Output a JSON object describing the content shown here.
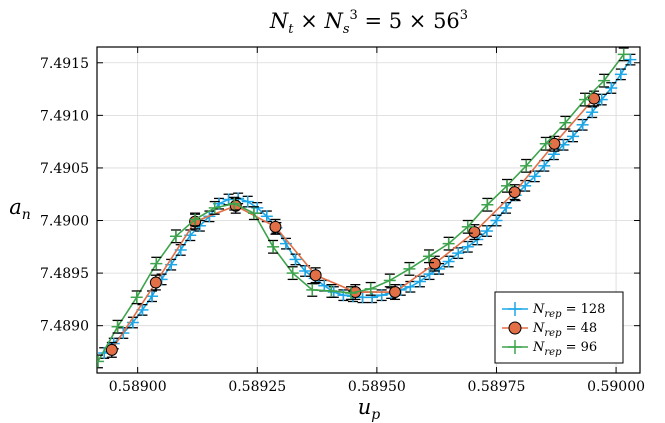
{
  "chart_data": {
    "type": "line",
    "title": "N_t × N_s^3 = 5 × 56^3",
    "xlabel": "u_p",
    "ylabel": "a_n",
    "xlim": [
      0.588915,
      0.59005
    ],
    "ylim": [
      7.48855,
      7.49165
    ],
    "x_ticks": [
      0.589,
      0.58925,
      0.5895,
      0.58975,
      0.59
    ],
    "x_tick_labels": [
      "0.58900",
      "0.58925",
      "0.58950",
      "0.58975",
      "0.59000"
    ],
    "y_ticks": [
      7.489,
      7.4895,
      7.49,
      7.4905,
      7.491,
      7.4915
    ],
    "y_tick_labels": [
      "7.4890",
      "7.4895",
      "7.4900",
      "7.4905",
      "7.4910",
      "7.4915"
    ],
    "grid": true,
    "legend_position": "bottom-right",
    "series": [
      {
        "name": "N_rep = 128",
        "color": "#1ca8e8",
        "marker": "plus",
        "x": [
          0.58893,
          0.58895,
          0.58897,
          0.58899,
          0.58901,
          0.58903,
          0.58905,
          0.58907,
          0.58909,
          0.58911,
          0.58913,
          0.58915,
          0.58917,
          0.58919,
          0.58921,
          0.58923,
          0.58925,
          0.58927,
          0.58929,
          0.58931,
          0.58933,
          0.58935,
          0.58937,
          0.58939,
          0.58941,
          0.58943,
          0.58945,
          0.58947,
          0.58949,
          0.58951,
          0.58953,
          0.58955,
          0.58957,
          0.58959,
          0.58961,
          0.58963,
          0.58965,
          0.58967,
          0.58969,
          0.58971,
          0.58973,
          0.58975,
          0.58977,
          0.58979,
          0.58981,
          0.58983,
          0.58985,
          0.58987,
          0.58989,
          0.58991,
          0.58993,
          0.58995,
          0.58997,
          0.58999,
          0.59001,
          0.59003
        ],
        "y": [
          7.48874,
          7.48883,
          7.48893,
          7.48903,
          7.48915,
          7.48928,
          7.48944,
          7.48958,
          7.48972,
          7.48986,
          7.48995,
          7.49004,
          7.49016,
          7.4902,
          7.49021,
          7.49018,
          7.49012,
          7.49004,
          7.48993,
          7.48978,
          7.48963,
          7.48952,
          7.48945,
          7.48938,
          7.48932,
          7.48929,
          7.48928,
          7.48927,
          7.48927,
          7.48929,
          7.48931,
          7.48934,
          7.48937,
          7.48942,
          7.48949,
          7.48954,
          7.48961,
          7.48969,
          7.48975,
          7.48982,
          7.4899,
          7.49,
          7.49012,
          7.49024,
          7.49033,
          7.49042,
          7.49052,
          7.49063,
          7.49072,
          7.4908,
          7.49091,
          7.49103,
          7.49115,
          7.49126,
          7.49139,
          7.49153
        ],
        "error": 5e-05
      },
      {
        "name": "N_rep = 48",
        "color": "#e26f46",
        "marker": "circle",
        "x": [
          0.588946,
          0.589038,
          0.58912,
          0.589205,
          0.589288,
          0.589372,
          0.589455,
          0.589538,
          0.589621,
          0.589704,
          0.589788,
          0.589871,
          0.589954
        ],
        "y": [
          7.48877,
          7.48941,
          7.48999,
          7.49014,
          7.48994,
          7.48948,
          7.48932,
          7.48932,
          7.48959,
          7.48989,
          7.49027,
          7.49073,
          7.49116
        ],
        "error": 7e-05
      },
      {
        "name": "N_rep = 96",
        "color": "#3da44d",
        "marker": "plus",
        "x": [
          0.588917,
          0.588958,
          0.588998,
          0.589039,
          0.58908,
          0.58912,
          0.589161,
          0.589202,
          0.589243,
          0.589283,
          0.589324,
          0.589365,
          0.589405,
          0.589446,
          0.589487,
          0.589527,
          0.589568,
          0.589609,
          0.58965,
          0.58969,
          0.589731,
          0.589772,
          0.589812,
          0.589853,
          0.589894,
          0.589935,
          0.589975,
          0.590016
        ],
        "y": [
          7.48866,
          7.48899,
          7.48927,
          7.48959,
          7.48985,
          7.49001,
          7.49012,
          7.49016,
          7.49007,
          7.48975,
          7.4895,
          7.48934,
          7.48933,
          7.48931,
          7.48935,
          7.48943,
          7.48954,
          7.48966,
          7.48978,
          7.48994,
          7.49015,
          7.49033,
          7.49052,
          7.49073,
          7.49093,
          7.49115,
          7.49133,
          7.49158
        ],
        "error": 6e-05
      }
    ]
  }
}
